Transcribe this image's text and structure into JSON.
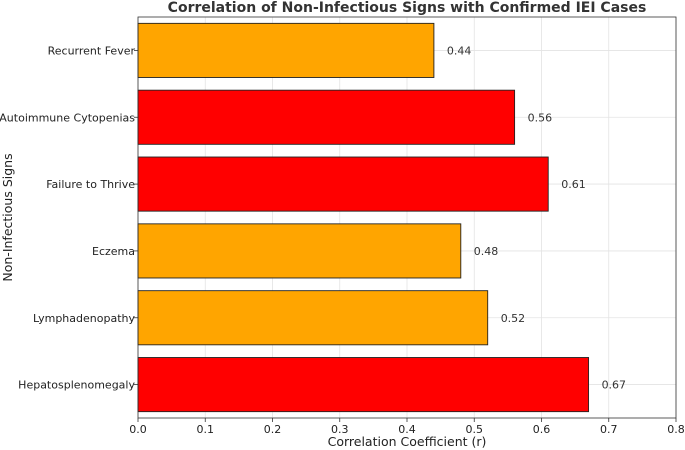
{
  "chart_data": {
    "type": "bar",
    "orientation": "horizontal",
    "title": "Correlation of Non-Infectious Signs with Confirmed IEI Cases",
    "xlabel": "Correlation Coefficient (r)",
    "ylabel": "Non-Infectious Signs",
    "xlim": [
      0,
      0.8
    ],
    "xticks": [
      "0.0",
      "0.1",
      "0.2",
      "0.3",
      "0.4",
      "0.5",
      "0.6",
      "0.7",
      "0.8"
    ],
    "grid": true,
    "categories": [
      "Recurrent Fever",
      "Autoimmune Cytopenias",
      "Failure to Thrive",
      "Eczema",
      "Lymphadenopathy",
      "Hepatosplenomegaly"
    ],
    "values": [
      0.44,
      0.56,
      0.61,
      0.48,
      0.52,
      0.67
    ],
    "value_labels": [
      "0.44",
      "0.56",
      "0.61",
      "0.48",
      "0.52",
      "0.67"
    ],
    "bar_colors": [
      "#FFA500",
      "#FF0000",
      "#FF0000",
      "#FFA500",
      "#FFA500",
      "#FF0000"
    ]
  }
}
